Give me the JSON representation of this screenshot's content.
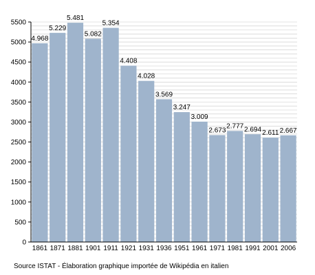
{
  "colors": {
    "bar": "#9fb4cc",
    "grid": "#c8c8c8",
    "axis": "#000000"
  },
  "source_note": "Source ISTAT - Élaboration graphique importée de Wikipédia en italien",
  "chart_data": {
    "type": "bar",
    "title": "",
    "xlabel": "",
    "ylabel": "",
    "ylim": [
      0,
      5500
    ],
    "yticks": [
      0,
      500,
      1000,
      1500,
      2000,
      2500,
      3000,
      3500,
      4000,
      4500,
      5000,
      5500
    ],
    "grid": true,
    "categories": [
      "1861",
      "1871",
      "1881",
      "1901",
      "1911",
      "1921",
      "1931",
      "1936",
      "1951",
      "1961",
      "1971",
      "1981",
      "1991",
      "2001",
      "2006"
    ],
    "values": [
      4968,
      5229,
      5481,
      5082,
      5354,
      4408,
      4028,
      3569,
      3247,
      3009,
      2673,
      2777,
      2694,
      2611,
      2667
    ],
    "data_labels": [
      "4.968",
      "5.229",
      "5.481",
      "5.082",
      "5.354",
      "4.408",
      "4.028",
      "3.569",
      "3.247",
      "3.009",
      "2.673",
      "2.777",
      "2.694",
      "2.611",
      "2.667"
    ]
  }
}
